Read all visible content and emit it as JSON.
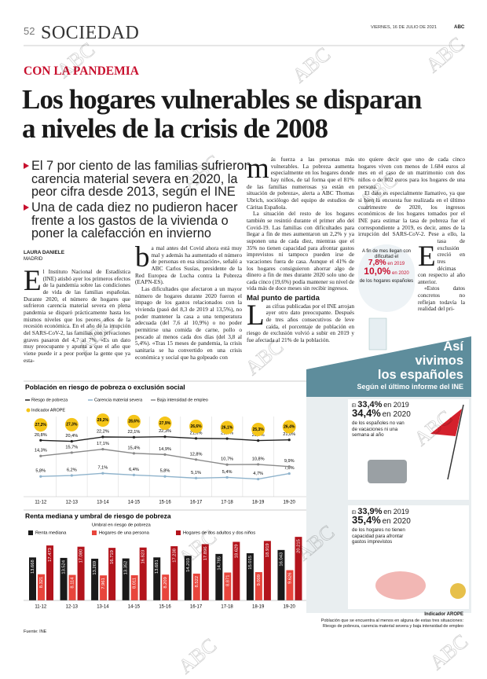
{
  "header": {
    "page": "52",
    "section": "SOCIEDAD",
    "date": "VIERNES, 16 DE JULIO DE 2021",
    "paper": "ABC"
  },
  "watermark": "ABC",
  "kicker": "CON LA PANDEMIA",
  "headline": [
    "Los hogares vulnerables se disparan",
    "a niveles de la crisis de 2008"
  ],
  "bullets": [
    "El 7 por ciento de las familias sufrieron carencia material severa en 2020, la peor cifra desde 2013, según el INE",
    "Una de cada diez no pudieron hacer frente a los gastos de la vivienda o poner la calefacción en invierno"
  ],
  "byline": {
    "author": "LAURA DANIELE",
    "location": "MADRID"
  },
  "article": {
    "columns": [
      {
        "paragraphs": [
          "El Instituto Nacional de Estadística (INE) atisbó ayer los primeros efectos de la pandemia sobre las condiciones de vida de las familias españolas. Durante 2020, el número de hogares que sufrieron carencia material severa en plena pandemia se disparó prácticamente hasta los mismos niveles que los peores años de la recesión económica. En el año de la irrupción del SARS-CoV-2, las familias con privaciones graves pasaron del 4,7 al 7%. «Es un dato muy preocupante y apunta a que el año que viene puede ir a peor porque la gente que ya esta-"
        ]
      },
      {
        "paragraphs": [
          "ba mal antes del Covid ahora está muy mal y además ha aumentado el número de personas en esa situación», señaló a ABC Carlos Susías, presidente de la Red Europea de Lucha contra la Pobreza (EAPN-ES).",
          "Las dificultades que afectaron a un mayor número de hogares durante 2020 fueron el impago de los gastos relacionados con la vivienda (pasó del 8,3 de 2019 al 13,5%), no poder mantener la casa a una temperatura adecuada (del 7,6 al 10,9%) o no poder permitirse una comida de carne, pollo o pescado al menos cada dos días (del 3,8 al 5,4%). «Tras 15 meses de pandemia, la crisis sanitaria se ha convertido en una crisis económica y social que ha golpeado con"
        ]
      },
      {
        "paragraphs": [
          "más fuerza a las personas más vulnerables. La pobreza aumenta especialmente en los hogares donde hay niños, de tal forma que el 81% de las familias numerosas ya están en situación de pobreza», alerta a ABC Thomas Ubrich, sociólogo del equipo de estudios de Cáritas Española.",
          "La situación del resto de los hogares también se resintió durante el primer año del Covid-19. Las familias con dificultades para llegar a fin de mes aumentaron un 2,2% y ya suponen una de cada diez, mientras que el 35% no tienen capacidad para afrontar gastos imprevistos ni tampoco pueden irse de vacaciones fuera de casa. Aunque el 41% de los hogares consiguieron ahorrar algo de dinero a fin de mes durante 2020 solo uno de cada cinco (19,6%) podía mantener su nivel de vida más de doce meses sin recibir ingresos."
        ],
        "subhead": "Mal punto de partida",
        "paragraphs_after": [
          "Las cifras publicadas por el INE arrojan ayer otro dato preocupante. Después de tres años consecutivos de leve caída, el porcentaje de población en riesgo de exclusión volvió a subir en 2019 y fue afectada al 21% de la población."
        ]
      },
      {
        "paragraphs": [
          "Esto quiere decir que uno de cada cinco hogares viven con menos de 1.684 euros al mes en el caso de un matrimonio con dos niños o de 802 euros para los hogares de una persona.",
          "El dato es especialmente llamativo, ya que si bien la encuesta fue realizada en el último cuatrimestre de 2020, los ingresos económicos de los hogares tomados por el INE para estimar la tasa de pobreza fue el correspondiente a 2019, es decir, antes de la irrupción del SARS-CoV-2. Pese a ello, la tasa de exclusión creció en tres décimas con respecto al año anterior.",
          "«Estos datos concretos no reflejan todavía la realidad del pri-"
        ]
      }
    ]
  },
  "inset": {
    "lead": "A fin de mes llegan con dificultad el",
    "rows": [
      {
        "figure": "7,8%",
        "year": "en 2019"
      },
      {
        "figure": "10,0%",
        "year": "en 2020"
      }
    ],
    "note": "de los hogares españoles"
  },
  "infographic": {
    "title": [
      "Así",
      "vivimos",
      "los españoles"
    ],
    "subtitle": "Según el último informe del INE",
    "panels": [
      {
        "prefix": "El",
        "first": "33,4%",
        "first_year": "en 2019",
        "second": "34,4%",
        "second_year": "en 2020",
        "text": "de los españoles no van de vacaciones ni una semana al año"
      },
      {
        "prefix": "El",
        "first": "33,9%",
        "first_year": "en 2019",
        "second": "35,4%",
        "second_year": "en 2020",
        "text": "de los hogares no tienen capacidad para afrontar gastos imprevistos"
      }
    ],
    "arope": {
      "title": "Indicador AROPE",
      "text": "Población que se encuentra al menos en alguna de estas tres situaciones:",
      "detail": "Riesgo de pobreza, carencia material severa y baja intensidad de empleo"
    }
  },
  "source": "Fuente: INE",
  "chart_data": [
    {
      "type": "line",
      "title": "Población en riesgo de pobreza o exclusión social",
      "categories": [
        "11-12",
        "12-13",
        "13-14",
        "14-15",
        "15-16",
        "16-17",
        "17-18",
        "18-19",
        "19-20"
      ],
      "ylim": [
        0,
        32
      ],
      "series": [
        {
          "name": "Riesgo de pobreza",
          "color": "#222222",
          "values": [
            20.8,
            20.4,
            22.2,
            22.1,
            22.3,
            21.6,
            21.5,
            20.7,
            21.0
          ],
          "value_labels": [
            "20,8%",
            "20,4%",
            "22,2%",
            "22,1%",
            "22,3%",
            "21,6%",
            "21,5%",
            "20,7%",
            "21,0%"
          ]
        },
        {
          "name": "Carencia material severa",
          "color": "#8fb3cc",
          "values": [
            5.8,
            6.2,
            7.1,
            6.4,
            5.8,
            5.1,
            5.4,
            4.7,
            7.0
          ],
          "value_labels": [
            "5,8%",
            "6,2%",
            "7,1%",
            "6,4%",
            "5,8%",
            "5,1%",
            "5,4%",
            "4,7%",
            "7,0%"
          ]
        },
        {
          "name": "Baja intensidad de empleo",
          "color": "#8a8a8a",
          "values": [
            14.3,
            15.7,
            17.1,
            15.4,
            14.9,
            12.8,
            10.7,
            10.8,
            9.9
          ],
          "value_labels": [
            "14,3%",
            "15,7%",
            "17,1%",
            "15,4%",
            "14,9%",
            "12,8%",
            "10,7%",
            "10,8%",
            "9,9%"
          ]
        },
        {
          "name": "Indicador AROPE",
          "color": "#f5c518",
          "values": [
            27.2,
            27.3,
            29.2,
            28.6,
            27.9,
            26.6,
            26.1,
            25.3,
            26.4
          ],
          "value_labels": [
            "27,2%",
            "27,3%",
            "29,2%",
            "28,6%",
            "27,9%",
            "26,6%",
            "26,1%",
            "25,3%",
            "26,4%"
          ]
        }
      ]
    },
    {
      "type": "bar",
      "title": "Renta mediana y umbral de riesgo de pobreza",
      "legend_title": "Umbral en riesgo de pobreza",
      "categories": [
        "11-12",
        "12-13",
        "13-14",
        "14-15",
        "15-16",
        "16-17",
        "17-18",
        "18-19",
        "19-20"
      ],
      "ylim": [
        0,
        21000
      ],
      "series": [
        {
          "name": "Renta mediana",
          "color": "#1a1a1a",
          "values": [
            13668,
            13524,
            13269,
            13352,
            13681,
            14203,
            14785,
            15015,
            16043
          ],
          "value_labels": [
            "13.668",
            "13.524",
            "13.269",
            "13.352",
            "13.681",
            "14.203",
            "14.785",
            "15.015",
            "16.043"
          ]
        },
        {
          "name": "Hogares de una persona",
          "color": "#e8453c",
          "values": [
            8321,
            8114,
            7961,
            8011,
            8209,
            8522,
            8871,
            9009,
            9626
          ],
          "value_labels": [
            "8.321",
            "8.114",
            "7.961",
            "8.011",
            "8.209",
            "8.522",
            "8.871",
            "9.009",
            "9.626"
          ]
        },
        {
          "name": "Hogares de dos adultos y dos niños",
          "color": "#b3141c",
          "values": [
            17473,
            17080,
            16719,
            16823,
            17238,
            17896,
            18629,
            18919,
            20215
          ],
          "value_labels": [
            "17.473",
            "17.080",
            "16.719",
            "16.823",
            "17.238",
            "17.896",
            "18.629",
            "18.919",
            "20.215"
          ]
        }
      ]
    }
  ]
}
